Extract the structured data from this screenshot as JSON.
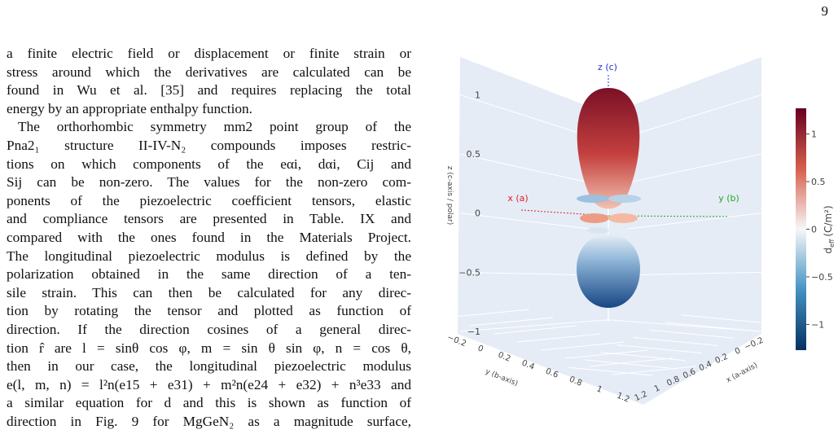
{
  "page_number": "9",
  "paragraphs": [
    [
      "a finite electric field or displacement or finite strain or",
      "stress around which the derivatives are calculated can be",
      "found in Wu et al. [35] and requires replacing the total",
      "energy by an appropriate enthalpy function."
    ],
    [
      "The orthorhombic symmetry mm2 point group of the",
      "Pna2₁ structure II-IV-N₂ compounds imposes restric-",
      "tions on which components of the eαi, dαi, Cij and",
      "Sij can be non-zero. The values for the non-zero com-",
      "ponents of the piezoelectric coefficient tensors, elastic",
      "and compliance tensors are presented in Table. IX and",
      "compared with the ones found in the Materials Project.",
      "The longitudinal piezoelectric modulus is defined by the",
      "polarization obtained in the same direction of a ten-",
      "sile strain. This can then be calculated for any direc-",
      "tion by rotating the tensor and plotted as function of",
      "direction. If the direction cosines of a general direc-",
      "tion r̂ are l = sinθ cos φ, m = sin θ sin φ, n = cos θ,",
      "then in our case, the longitudinal piezoelectric modulus",
      "e(l, m, n) = l²n(e15 + e31) + m²n(e24 + e32) + n³e33 and",
      "a similar equation for d and this is shown as function of",
      "direction in Fig. 9 for MgGeN₂ as a magnitude surface,"
    ]
  ],
  "figure": {
    "axis_labels": {
      "z": "z (c)",
      "x": "x (a)",
      "y": "y (b)"
    },
    "z_title": "z (c-axis / polar)",
    "x_title": "x (a-axis)",
    "y_title": "y (b-axis)",
    "zlim": [
      -1,
      1.32
    ],
    "zticks": [
      1,
      0.5,
      0,
      {
        "value": -0.5,
        "label": "−0.5"
      },
      {
        "value": -1,
        "label": "−1"
      }
    ],
    "xticks": [
      {
        "value": -0.2,
        "label": "−0.2"
      },
      0,
      0.2,
      0.4,
      0.6,
      0.8,
      1,
      1.2
    ],
    "yticks": [
      {
        "value": -0.2,
        "label": "−0.2"
      },
      0,
      0.2,
      0.4,
      0.6,
      0.8,
      1,
      1.2
    ],
    "colorbar_title": {
      "symbol": "d",
      "subscript": "eff",
      "unit": "(C/m²)"
    },
    "clim": [
      -1.27,
      1.27
    ],
    "colorbar_ticks": [
      1,
      0.5,
      0,
      {
        "value": -0.5,
        "label": "−0.5"
      },
      {
        "value": -1,
        "label": "−1"
      }
    ]
  }
}
